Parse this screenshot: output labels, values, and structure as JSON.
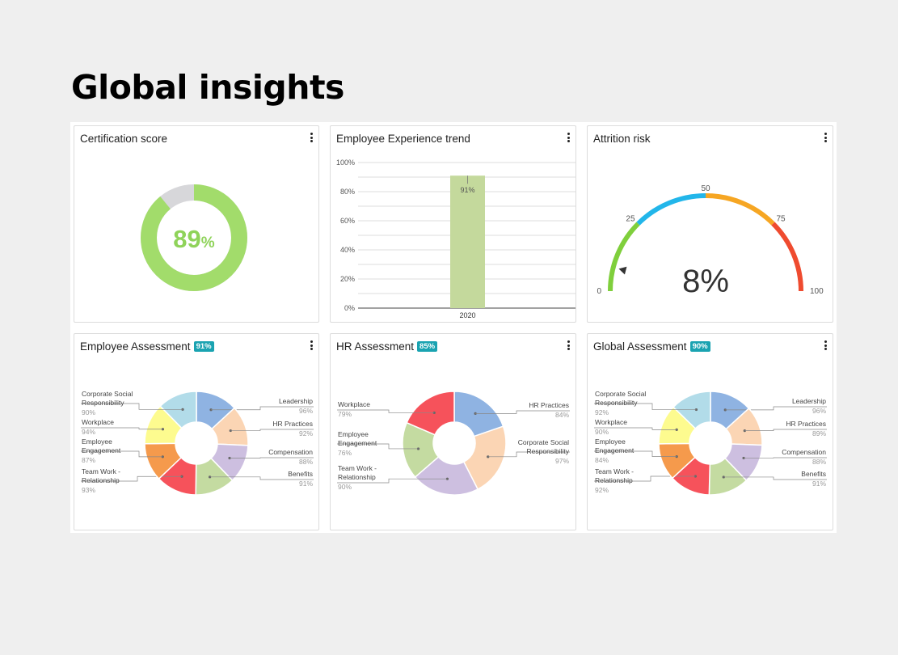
{
  "page": {
    "title": "Global insights"
  },
  "widgets": {
    "certification": {
      "title": "Certification score",
      "value_number": "89",
      "value_unit": "%",
      "fraction": 0.89,
      "colors": {
        "fill": "#a2dc6b",
        "rest": "#d7d7da",
        "text": "#8fd35a"
      }
    },
    "trend": {
      "title": "Employee Experience trend",
      "chart_data": {
        "type": "bar",
        "categories": [
          "2020"
        ],
        "values": [
          91
        ],
        "data_labels": [
          "91%"
        ],
        "ylim": [
          0,
          100
        ],
        "yticks": [
          "0%",
          "20%",
          "40%",
          "60%",
          "80%",
          "100%"
        ],
        "grid": true,
        "color": "#c4d99c"
      }
    },
    "attrition": {
      "title": "Attrition risk",
      "value_label": "8%",
      "value": 8,
      "range": [
        0,
        100
      ],
      "ticks": [
        "0",
        "25",
        "50",
        "75",
        "100"
      ],
      "bands": [
        {
          "from": 0,
          "to": 25,
          "color": "#7fcf3c"
        },
        {
          "from": 25,
          "to": 50,
          "color": "#22b6ea"
        },
        {
          "from": 50,
          "to": 75,
          "color": "#f6a623"
        },
        {
          "from": 75,
          "to": 100,
          "color": "#ef4b2f"
        }
      ]
    },
    "employee_assessment": {
      "title": "Employee Assessment",
      "badge": "91%",
      "chart_data": {
        "type": "pie",
        "slices": [
          {
            "label": "Leadership",
            "value_label": "96%",
            "value": 96,
            "color": "#8fb3e2"
          },
          {
            "label": "HR Practices",
            "value_label": "92%",
            "value": 92,
            "color": "#fbd5b4"
          },
          {
            "label": "Compensation",
            "value_label": "88%",
            "value": 88,
            "color": "#cdbfe0"
          },
          {
            "label": "Benefits",
            "value_label": "91%",
            "value": 91,
            "color": "#c4dba1"
          },
          {
            "label": "Team Work - Relationship",
            "value_label": "93%",
            "value": 93,
            "color": "#f6525b"
          },
          {
            "label": "Employee Engagement",
            "value_label": "87%",
            "value": 87,
            "color": "#f59a4c"
          },
          {
            "label": "Workplace",
            "value_label": "94%",
            "value": 94,
            "color": "#fdfb8f"
          },
          {
            "label": "Corporate Social Responsibility",
            "value_label": "90%",
            "value": 90,
            "color": "#b2dce9"
          }
        ]
      }
    },
    "hr_assessment": {
      "title": "HR Assessment",
      "badge": "85%",
      "chart_data": {
        "type": "pie",
        "slices": [
          {
            "label": "HR Practices",
            "value_label": "84%",
            "value": 84,
            "color": "#8fb3e2"
          },
          {
            "label": "Corporate Social Responsibility",
            "value_label": "97%",
            "value": 97,
            "color": "#fbd5b4"
          },
          {
            "label": "Relationship",
            "value_label": "90%",
            "value": 90,
            "color": "#cdbfe0"
          },
          {
            "label": "Employee Engagement",
            "value_label": "76%",
            "value": 76,
            "color": "#c4dba1"
          },
          {
            "label": "Workplace",
            "value_label": "79%",
            "value": 79,
            "color": "#f6525b"
          }
        ],
        "team_label": "Team Work -"
      }
    },
    "global_assessment": {
      "title": "Global Assessment",
      "badge": "90%",
      "chart_data": {
        "type": "pie",
        "slices": [
          {
            "label": "Leadership",
            "value_label": "96%",
            "value": 96,
            "color": "#8fb3e2"
          },
          {
            "label": "HR Practices",
            "value_label": "89%",
            "value": 89,
            "color": "#fbd5b4"
          },
          {
            "label": "Compensation",
            "value_label": "88%",
            "value": 88,
            "color": "#cdbfe0"
          },
          {
            "label": "Benefits",
            "value_label": "91%",
            "value": 91,
            "color": "#c4dba1"
          },
          {
            "label": "Team Work - Relationship",
            "value_label": "92%",
            "value": 92,
            "color": "#f6525b"
          },
          {
            "label": "Employee Engagement",
            "value_label": "84%",
            "value": 84,
            "color": "#f59a4c"
          },
          {
            "label": "Workplace",
            "value_label": "90%",
            "value": 90,
            "color": "#fdfb8f"
          },
          {
            "label": "Corporate Social Responsibility",
            "value_label": "92%",
            "value": 92,
            "color": "#b2dce9"
          }
        ]
      }
    }
  }
}
